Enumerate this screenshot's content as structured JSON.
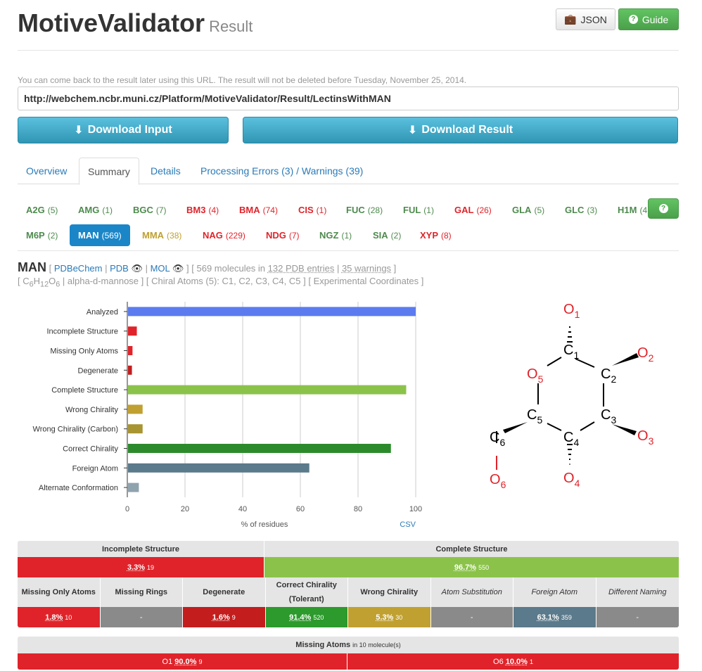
{
  "header": {
    "title": "MotiveValidator",
    "subtitle": "Result",
    "json_label": "JSON",
    "guide_label": "Guide"
  },
  "note": "You can come back to the result later using this URL. The result will not be deleted before Tuesday, November 25, 2014.",
  "url": "http://webchem.ncbr.muni.cz/Platform/MotiveValidator/Result/LectinsWithMAN",
  "buttons": {
    "download_input": "Download Input",
    "download_result": "Download Result"
  },
  "tabs": [
    {
      "label": "Overview"
    },
    {
      "label": "Summary"
    },
    {
      "label": "Details"
    },
    {
      "label": "Processing Errors (3) / Warnings (39)"
    }
  ],
  "residues": [
    {
      "name": "A2G",
      "count": "(5)"
    },
    {
      "name": "AMG",
      "count": "(1)"
    },
    {
      "name": "BGC",
      "count": "(7)"
    },
    {
      "name": "BM3",
      "count": "(4)"
    },
    {
      "name": "BMA",
      "count": "(74)"
    },
    {
      "name": "CIS",
      "count": "(1)"
    },
    {
      "name": "FUC",
      "count": "(28)"
    },
    {
      "name": "FUL",
      "count": "(1)"
    },
    {
      "name": "GAL",
      "count": "(26)"
    },
    {
      "name": "GLA",
      "count": "(5)"
    },
    {
      "name": "GLC",
      "count": "(3)"
    },
    {
      "name": "H1M",
      "count": "(4"
    },
    {
      "name": "M6P",
      "count": "(2)"
    },
    {
      "name": "MAN",
      "count": "(569)"
    },
    {
      "name": "MMA",
      "count": "(38)"
    },
    {
      "name": "NAG",
      "count": "(229)"
    },
    {
      "name": "NDG",
      "count": "(7)"
    },
    {
      "name": "NGZ",
      "count": "(1)"
    },
    {
      "name": "SIA",
      "count": "(2)"
    },
    {
      "name": "XYP",
      "count": "(8)"
    }
  ],
  "residue_info": {
    "name": "MAN",
    "pdbechem": "PDBeChem",
    "pdb": "PDB",
    "mol": "MOL",
    "molecules": "569 molecules in",
    "entries": "132 PDB entries",
    "warnings": "35 warnings",
    "formula_c": "C",
    "formula_c_n": "6",
    "formula_h": "H",
    "formula_h_n": "12",
    "formula_o": "O",
    "formula_o_n": "6",
    "iupac": "alpha-d-mannose",
    "chiral": "Chiral Atoms (5): C1, C2, C3, C4, C5",
    "coords": "Experimental Coordinates"
  },
  "chart_data": {
    "type": "bar",
    "orientation": "horizontal",
    "categories": [
      "Analyzed",
      "Incomplete Structure",
      "Missing Only Atoms",
      "Degenerate",
      "Complete Structure",
      "Wrong Chirality",
      "Wrong Chirality (Carbon)",
      "Correct Chirality",
      "Foreign Atom",
      "Alternate Conformation"
    ],
    "values": [
      100,
      3.3,
      1.8,
      1.6,
      96.7,
      5.3,
      5.3,
      91.4,
      63.1,
      4.0
    ],
    "colors": [
      "#5b7bef",
      "#e0232a",
      "#e0232a",
      "#c31d1d",
      "#8bc34a",
      "#c0a030",
      "#a89430",
      "#2c8a2c",
      "#5b7a8b",
      "#8fa3ae"
    ],
    "xlabel": "% of residues",
    "xlim": [
      0,
      100
    ],
    "xticks": [
      "0",
      "20",
      "40",
      "60",
      "80",
      "100"
    ],
    "csv_label": "CSV"
  },
  "molecule": {
    "atoms": [
      "O",
      "C",
      "C",
      "O",
      "C",
      "O",
      "C",
      "O",
      "C",
      "O",
      "C",
      "O"
    ],
    "subs": [
      "1",
      "1",
      "2",
      "2",
      "3",
      "3",
      "4",
      "4",
      "5",
      "5",
      "6",
      "6"
    ]
  },
  "table1": {
    "headers": [
      "Incomplete Structure",
      "Complete Structure"
    ],
    "values": [
      {
        "pct": "3.3%",
        "n": "19"
      },
      {
        "pct": "96.7%",
        "n": "550"
      }
    ]
  },
  "table2": {
    "headers": [
      "Missing Only Atoms",
      "Missing Rings",
      "Degenerate",
      "Correct Chirality (Tolerant)",
      "Wrong Chirality",
      "Atom Substitution",
      "Foreign Atom",
      "Different Naming"
    ],
    "values": [
      {
        "pct": "1.8%",
        "n": "10"
      },
      {
        "pct": "-",
        "n": ""
      },
      {
        "pct": "1.6%",
        "n": "9"
      },
      {
        "pct": "91.4%",
        "n": "520"
      },
      {
        "pct": "5.3%",
        "n": "30"
      },
      {
        "pct": "-",
        "n": ""
      },
      {
        "pct": "63.1%",
        "n": "359"
      },
      {
        "pct": "-",
        "n": ""
      }
    ]
  },
  "table3": {
    "header": "Missing Atoms",
    "header_suffix": "in 10 molecule(s)",
    "values": [
      {
        "atom": "O1",
        "pct": "90.0%",
        "n": "9"
      },
      {
        "atom": "O6",
        "pct": "10.0%",
        "n": "1"
      }
    ]
  }
}
